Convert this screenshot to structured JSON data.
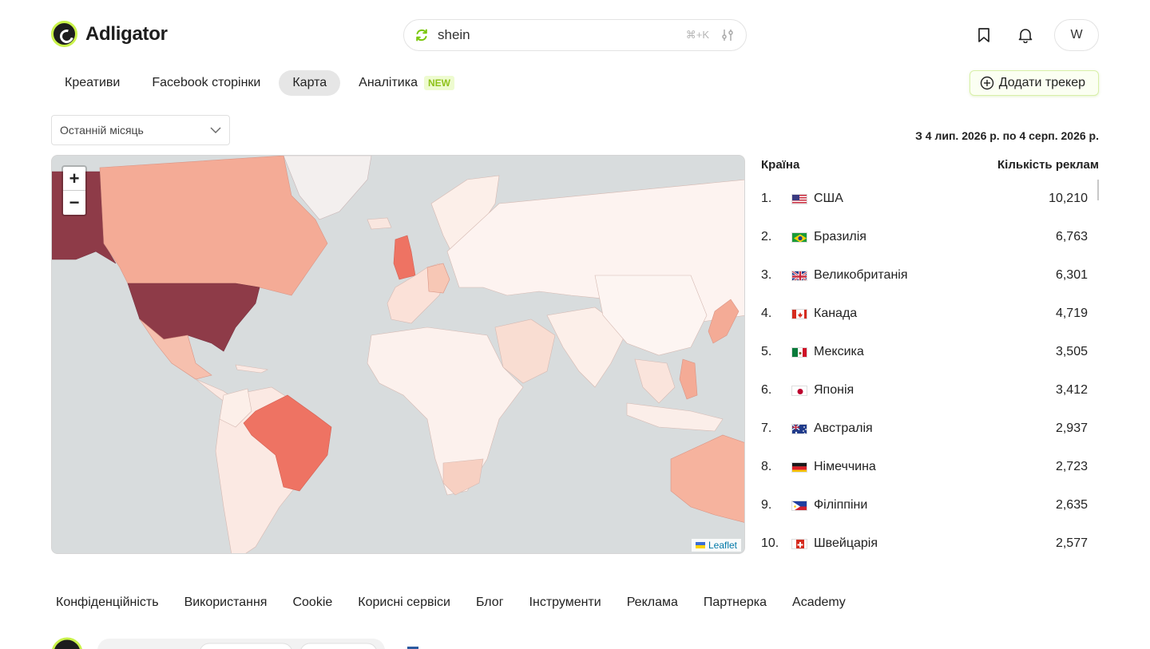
{
  "app": {
    "name": "Adligator"
  },
  "search": {
    "query": "shein",
    "shortcut": "⌘+K"
  },
  "user": {
    "initial": "W"
  },
  "tabs": [
    {
      "label": "Креативи",
      "active": false
    },
    {
      "label": "Facebook сторінки",
      "active": false
    },
    {
      "label": "Карта",
      "active": true
    },
    {
      "label": "Аналітика",
      "active": false,
      "badge": "NEW"
    }
  ],
  "tracker_button": {
    "label": "Додати трекер"
  },
  "period": {
    "selected": "Останній місяць"
  },
  "date_range": "З 4 лип. 2026 р. по 4 серп. 2026 р.",
  "map": {
    "attribution": "Leaflet",
    "zoom_in": "+",
    "zoom_out": "−"
  },
  "table": {
    "col_country": "Країна",
    "col_count": "Кількість реклам",
    "rows": [
      {
        "rank": "1.",
        "country": "США",
        "count": "10,210",
        "flag": "us"
      },
      {
        "rank": "2.",
        "country": "Бразилія",
        "count": "6,763",
        "flag": "br"
      },
      {
        "rank": "3.",
        "country": "Великобританія",
        "count": "6,301",
        "flag": "gb"
      },
      {
        "rank": "4.",
        "country": "Канада",
        "count": "4,719",
        "flag": "ca"
      },
      {
        "rank": "5.",
        "country": "Мексика",
        "count": "3,505",
        "flag": "mx"
      },
      {
        "rank": "6.",
        "country": "Японія",
        "count": "3,412",
        "flag": "jp"
      },
      {
        "rank": "7.",
        "country": "Австралія",
        "count": "2,937",
        "flag": "au"
      },
      {
        "rank": "8.",
        "country": "Німеччина",
        "count": "2,723",
        "flag": "de"
      },
      {
        "rank": "9.",
        "country": "Філіппіни",
        "count": "2,635",
        "flag": "ph"
      },
      {
        "rank": "10.",
        "country": "Швейцарія",
        "count": "2,577",
        "flag": "ch"
      }
    ]
  },
  "footer": {
    "links": [
      "Конфіденційність",
      "Використання",
      "Cookie",
      "Корисні сервіси",
      "Блог",
      "Інструменти",
      "Реклама",
      "Партнерка",
      "Academy"
    ]
  },
  "colors": {
    "accent": "#c9f24a",
    "choropleth_max": "#8e3b48",
    "choropleth_high": "#ee7363",
    "choropleth_mid": "#f6b39e",
    "choropleth_low": "#fbe9e3"
  }
}
